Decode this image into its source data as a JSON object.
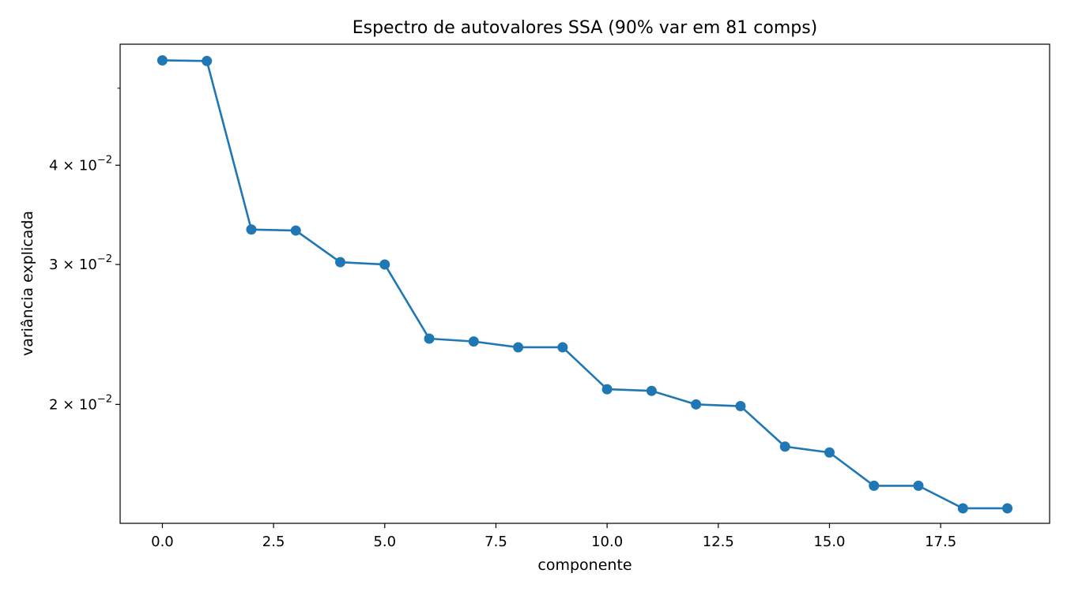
{
  "chart_data": {
    "type": "line",
    "title": "Espectro de autovalores SSA (90% var em 81 comps)",
    "xlabel": "componente",
    "ylabel": "variância explicada",
    "yscale": "log",
    "xlim": [
      -0.95,
      19.95
    ],
    "ylim": [
      0.01417,
      0.0568
    ],
    "grid": false,
    "color": "#1f77b4",
    "marker": "circle",
    "x_ticks": [
      {
        "value": 0.0,
        "label": "0.0"
      },
      {
        "value": 2.5,
        "label": "2.5"
      },
      {
        "value": 5.0,
        "label": "5.0"
      },
      {
        "value": 7.5,
        "label": "7.5"
      },
      {
        "value": 10.0,
        "label": "10.0"
      },
      {
        "value": 12.5,
        "label": "12.5"
      },
      {
        "value": 15.0,
        "label": "15.0"
      },
      {
        "value": 17.5,
        "label": "17.5"
      }
    ],
    "y_ticks": [
      {
        "value": 0.02,
        "mantissa": "2",
        "base": "10",
        "exp": "−2"
      },
      {
        "value": 0.03,
        "mantissa": "3",
        "base": "10",
        "exp": "−2"
      },
      {
        "value": 0.04,
        "mantissa": "4",
        "base": "10",
        "exp": "−2"
      }
    ],
    "y_minor_ticks": [
      0.05
    ],
    "x": [
      0,
      1,
      2,
      3,
      4,
      5,
      6,
      7,
      8,
      9,
      10,
      11,
      12,
      13,
      14,
      15,
      16,
      17,
      18,
      19
    ],
    "values": [
      0.0542,
      0.0541,
      0.0332,
      0.0331,
      0.0302,
      0.03,
      0.0242,
      0.024,
      0.0236,
      0.0236,
      0.0209,
      0.0208,
      0.02,
      0.0199,
      0.0177,
      0.0174,
      0.0158,
      0.0158,
      0.0148,
      0.0148
    ]
  }
}
